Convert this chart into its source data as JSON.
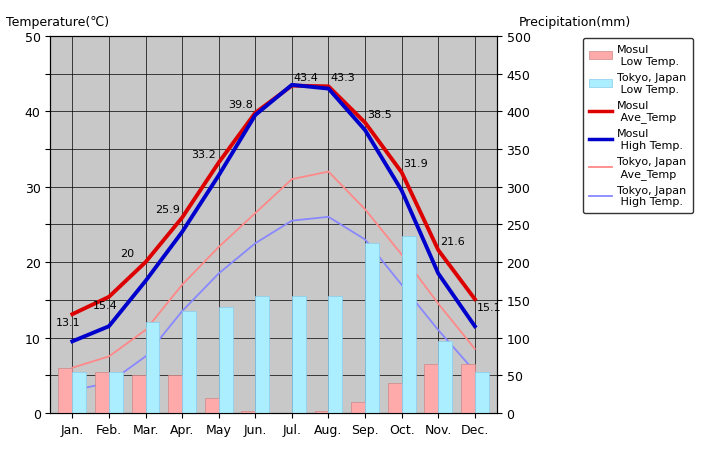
{
  "months": [
    "Jan.",
    "Feb.",
    "Mar.",
    "Apr.",
    "May",
    "Jun.",
    "Jul.",
    "Aug.",
    "Sep.",
    "Oct.",
    "Nov.",
    "Dec."
  ],
  "mosul_ave_temp": [
    13.1,
    15.4,
    20.0,
    25.9,
    33.2,
    39.8,
    43.4,
    43.3,
    38.5,
    31.9,
    21.6,
    15.1
  ],
  "mosul_high_temp": [
    9.5,
    11.5,
    17.5,
    24.0,
    31.5,
    39.5,
    43.5,
    43.0,
    37.5,
    29.5,
    18.5,
    11.5
  ],
  "tokyo_ave_temp": [
    6.0,
    7.5,
    11.0,
    17.0,
    22.0,
    26.5,
    31.0,
    32.0,
    27.0,
    21.0,
    14.5,
    8.5
  ],
  "tokyo_high_temp": [
    3.0,
    4.0,
    7.5,
    13.5,
    18.5,
    22.5,
    25.5,
    26.0,
    23.0,
    17.0,
    11.0,
    5.5
  ],
  "mosul_precip_mm": [
    60,
    55,
    50,
    50,
    20,
    2,
    0,
    2,
    15,
    40,
    65,
    65
  ],
  "tokyo_precip_mm": [
    55,
    55,
    120,
    135,
    140,
    155,
    155,
    155,
    225,
    235,
    95,
    55
  ],
  "mosul_ave_annot": [
    13.1,
    15.4,
    20.0,
    25.9,
    33.2,
    39.8,
    43.4,
    43.3,
    38.5,
    31.9,
    21.6,
    15.1
  ],
  "temp_ylim": [
    0,
    50
  ],
  "precip_ylim": [
    0,
    500
  ],
  "bg_color": "#c8c8c8",
  "mosul_ave_color": "#dd0000",
  "mosul_high_color": "#0000cc",
  "tokyo_ave_color": "#ff8888",
  "tokyo_high_color": "#8888ff",
  "mosul_bar_color": "#ffaaaa",
  "tokyo_bar_color": "#aaeeff",
  "mosul_bar_edge": "#cc8888",
  "tokyo_bar_edge": "#88ccee",
  "title_left": "Temperature(℃)",
  "title_right": "Precipitation(mm)",
  "legend_labels": [
    "Mosul\n Low Temp.",
    "Tokyo, Japan\n Low Temp.",
    "Mosul\n Ave_Temp",
    "Mosul\n High Temp.",
    "Tokyo, Japan\n Ave_Temp",
    "Tokyo, Japan\n High Temp."
  ]
}
